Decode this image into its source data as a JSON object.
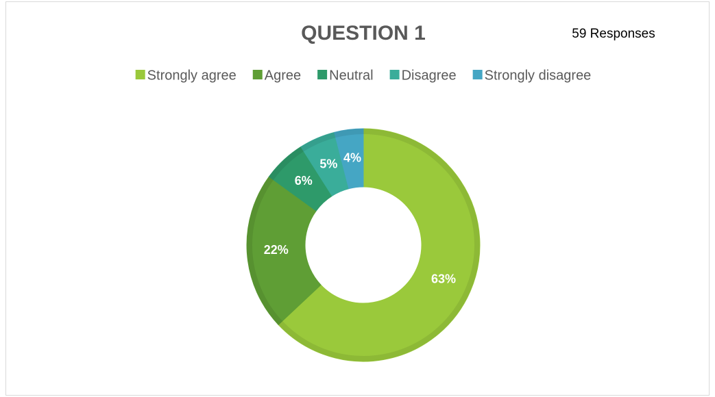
{
  "chart_data": {
    "type": "donut",
    "title": "QUESTION 1",
    "annotation": "59 Responses",
    "categories": [
      "Strongly agree",
      "Agree",
      "Neutral",
      "Disagree",
      "Strongly disagree"
    ],
    "values": [
      63,
      22,
      6,
      5,
      4
    ],
    "value_labels": [
      "63%",
      "22%",
      "6%",
      "5%",
      "4%"
    ],
    "colors": [
      "#9ac93b",
      "#5f9e35",
      "#2e9a6a",
      "#3aad9a",
      "#45a6c4"
    ],
    "legend": "top"
  }
}
